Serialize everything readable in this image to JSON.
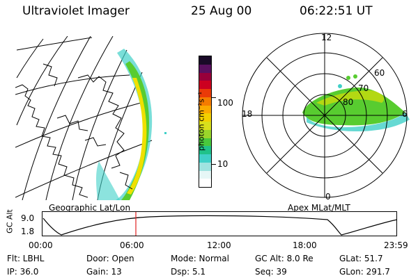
{
  "header": {
    "instrument": "Ultraviolet Imager",
    "date": "25 Aug 00",
    "time": "06:22:51 UT"
  },
  "colorbar": {
    "ylabel": "photon cm⁻²s⁻¹",
    "ticks": [
      "100",
      "10"
    ],
    "scale": "log",
    "colors": [
      "#ffffff",
      "#e6f7f6",
      "#9fe3e0",
      "#40d0c8",
      "#20c28a",
      "#49c83c",
      "#9ad62a",
      "#d8df1c",
      "#f2d000",
      "#fbaa00",
      "#f57c00",
      "#ea3a08",
      "#cc0020",
      "#98003a",
      "#5a1060",
      "#1a0a28"
    ]
  },
  "left_panel": {
    "label": "Geographic Lat/Lon"
  },
  "right_panel": {
    "label": "Apex MLat/MLT",
    "mlt_labels": {
      "top": "12",
      "left": "18",
      "right": "6",
      "bottom": "0"
    },
    "lat_labels": [
      "60",
      "70",
      "80"
    ]
  },
  "orbit": {
    "ylabel": "GC Alt",
    "yticks": [
      "9.0",
      "1.8"
    ],
    "xticks": [
      "00:00",
      "06:00",
      "12:00",
      "18:00",
      "23:59"
    ]
  },
  "footer": [
    [
      "Flt: LBHL",
      "Door: Open",
      "Mode: Normal",
      "GC Alt: 8.0 Re",
      "GLat: 51.7"
    ],
    [
      "IP: 36.0",
      "Gain: 13",
      "Dsp: 5.1",
      "Seq: 39",
      "GLon: 291.7"
    ]
  ],
  "colors": {
    "marker": "#e02020",
    "aurora_hi": "#f0e000",
    "aurora_mid": "#58cc30",
    "aurora_lo": "#3fcfc0"
  }
}
